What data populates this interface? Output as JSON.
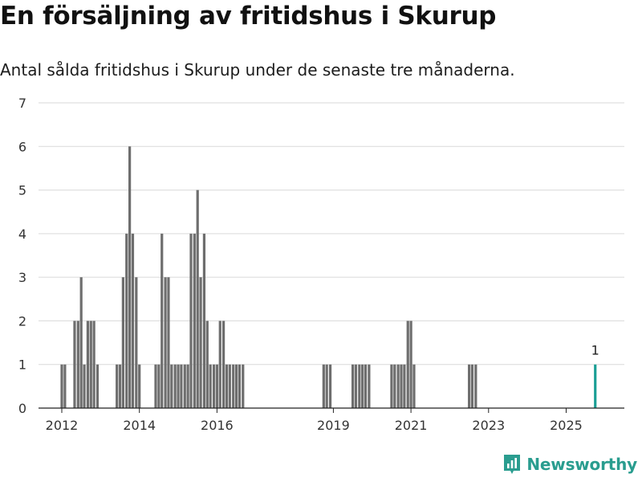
{
  "header": {
    "title": "En försäljning av fritidshus i Skurup",
    "subtitle": "Antal sålda fritidshus i Skurup under de senaste tre månaderna."
  },
  "brand": {
    "name": "Newsworthy",
    "color": "#2a9d8f"
  },
  "colors": {
    "bar": "#6e6e6e",
    "highlight": "#1a9e94",
    "grid": "#d9d9d9",
    "axis": "#222222"
  },
  "chart_data": {
    "type": "bar",
    "title": "En försäljning av fritidshus i Skurup",
    "xlabel": "",
    "ylabel": "",
    "ylim": [
      0,
      7
    ],
    "yticks": [
      0,
      1,
      2,
      3,
      4,
      5,
      6,
      7
    ],
    "xlim": [
      2011.4,
      2026.5
    ],
    "xticks": [
      2012,
      2014,
      2016,
      2019,
      2021,
      2023,
      2025
    ],
    "grid": true,
    "x": [
      2012.0,
      2012.08,
      2012.33,
      2012.42,
      2012.5,
      2012.58,
      2012.67,
      2012.75,
      2012.83,
      2012.92,
      2013.42,
      2013.5,
      2013.58,
      2013.67,
      2013.75,
      2013.83,
      2013.92,
      2014.0,
      2014.42,
      2014.5,
      2014.58,
      2014.67,
      2014.75,
      2014.83,
      2014.92,
      2015.0,
      2015.08,
      2015.17,
      2015.25,
      2015.33,
      2015.42,
      2015.5,
      2015.58,
      2015.67,
      2015.75,
      2015.83,
      2015.92,
      2016.0,
      2016.08,
      2016.17,
      2016.25,
      2016.33,
      2016.42,
      2016.5,
      2016.58,
      2016.67,
      2018.75,
      2018.83,
      2018.92,
      2019.5,
      2019.58,
      2019.67,
      2019.75,
      2019.83,
      2019.92,
      2020.5,
      2020.58,
      2020.67,
      2020.75,
      2020.83,
      2020.92,
      2021.0,
      2021.08,
      2022.5,
      2022.58,
      2022.67,
      2025.75
    ],
    "values": [
      1,
      1,
      2,
      2,
      3,
      1,
      2,
      2,
      2,
      1,
      1,
      1,
      3,
      4,
      6,
      4,
      3,
      1,
      1,
      1,
      4,
      3,
      3,
      1,
      1,
      1,
      1,
      1,
      1,
      4,
      4,
      5,
      3,
      4,
      2,
      1,
      1,
      1,
      2,
      2,
      1,
      1,
      1,
      1,
      1,
      1,
      1,
      1,
      1,
      1,
      1,
      1,
      1,
      1,
      1,
      1,
      1,
      1,
      1,
      1,
      2,
      2,
      1,
      1,
      1,
      1,
      1
    ],
    "highlight_index": 66,
    "annotation": {
      "text": "1"
    }
  }
}
